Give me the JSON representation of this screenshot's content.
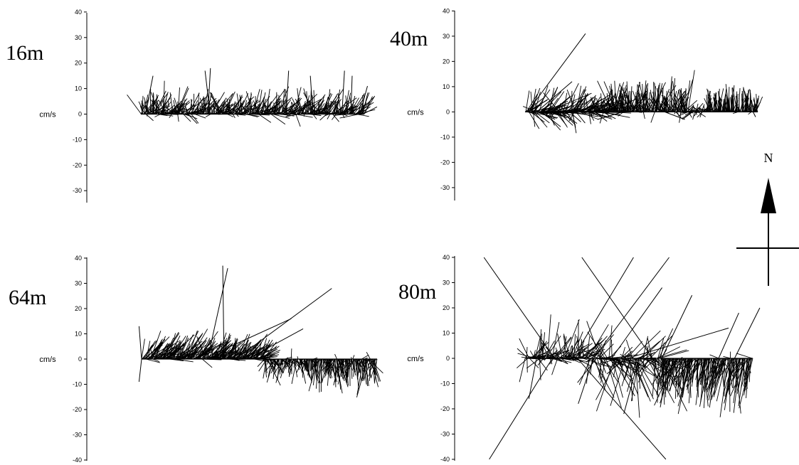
{
  "north": {
    "label": "N"
  },
  "chart_data": [
    {
      "type": "stick-plot",
      "panel": "16m",
      "title": "16m",
      "ylabel": "cm/s",
      "ylim": [
        -35,
        40
      ],
      "yticks": [
        40,
        30,
        20,
        10,
        0,
        -10,
        -20,
        -30
      ],
      "grid": false,
      "spread": 0.6,
      "mean": {
        "u": 0.5,
        "v": 6
      },
      "sticks": [
        {
          "t": 0.02,
          "u": 3,
          "v": 15
        },
        {
          "t": 0.05,
          "u": 6,
          "v": 8
        },
        {
          "t": 0.3,
          "u": 1,
          "v": 18
        },
        {
          "t": 0.31,
          "u": -2,
          "v": 17
        },
        {
          "t": 0.65,
          "u": 1,
          "v": 17
        },
        {
          "t": 0.77,
          "u": -1,
          "v": 15
        },
        {
          "t": 0.9,
          "u": 1,
          "v": 17
        },
        {
          "t": 0.94,
          "u": 0.5,
          "v": 15
        },
        {
          "t": 0.98,
          "u": 3,
          "v": 11
        }
      ],
      "segments": [
        {
          "from": 0.0,
          "to": 1.0,
          "u": 2,
          "v": 4,
          "su": 3,
          "sv": 3
        },
        {
          "from": 0.1,
          "to": 0.62,
          "u": 0.5,
          "v": 9,
          "su": 2.5,
          "sv": 3
        },
        {
          "from": 0.62,
          "to": 1.0,
          "u": 0,
          "v": 8,
          "su": 1.5,
          "sv": 4
        }
      ]
    },
    {
      "type": "stick-plot",
      "panel": "40m",
      "title": "40m",
      "ylabel": "cm/s",
      "ylim": [
        -35,
        40
      ],
      "yticks": [
        40,
        30,
        20,
        10,
        0,
        -10,
        -20,
        -30
      ],
      "grid": false,
      "spread": 0.5,
      "mean": {
        "u": 0.5,
        "v": 5
      },
      "sticks": [
        {
          "t": 0.01,
          "u": 23,
          "v": 31
        },
        {
          "t": 0.05,
          "u": 14,
          "v": 12
        },
        {
          "t": 0.42,
          "u": -10,
          "v": -3
        },
        {
          "t": 0.6,
          "u": 8,
          "v": -3
        },
        {
          "t": 0.72,
          "u": -4,
          "v": -3
        },
        {
          "t": 0.98,
          "u": 1,
          "v": -2
        },
        {
          "t": 0.99,
          "u": 2,
          "v": 4
        }
      ],
      "segments": [
        {
          "from": 0.0,
          "to": 0.36,
          "u": 5,
          "v": 2,
          "su": 4,
          "sv": 4
        },
        {
          "from": 0.36,
          "to": 0.7,
          "u": 0,
          "v": 6,
          "su": 2.5,
          "sv": 4
        },
        {
          "from": 0.7,
          "to": 0.78,
          "u": 0,
          "v": 0.5,
          "su": 2.5,
          "sv": 1.5
        },
        {
          "from": 0.78,
          "to": 1.0,
          "u": 0,
          "v": 5,
          "su": 1,
          "sv": 2.5
        }
      ]
    },
    {
      "type": "stick-plot",
      "panel": "64m",
      "title": "64m",
      "ylabel": "cm/s",
      "ylim": [
        -40,
        40
      ],
      "yticks": [
        40,
        30,
        20,
        10,
        0,
        -10,
        -20,
        -30,
        -40
      ],
      "grid": false,
      "spread": 0.6,
      "mean": {
        "u": 0,
        "v": 0
      },
      "sticks": [
        {
          "t": 0.0,
          "u": -1,
          "v": 13
        },
        {
          "t": 0.0,
          "u": -1,
          "v": -9
        },
        {
          "t": 0.35,
          "u": -0.5,
          "v": 37
        },
        {
          "t": 0.28,
          "u": 8,
          "v": 36
        },
        {
          "t": 0.26,
          "u": 35,
          "v": 16
        },
        {
          "t": 0.4,
          "u": 38,
          "v": 28
        },
        {
          "t": 0.45,
          "u": 22,
          "v": 12
        }
      ],
      "segments": [
        {
          "from": 0.0,
          "to": 0.52,
          "u": 5,
          "v": 5,
          "su": 2.5,
          "sv": 3
        },
        {
          "from": 0.52,
          "to": 0.72,
          "u": 0,
          "v": -4,
          "su": 2,
          "sv": 2.5
        },
        {
          "from": 0.72,
          "to": 1.0,
          "u": 0,
          "v": -6,
          "su": 2,
          "sv": 3.5
        }
      ]
    },
    {
      "type": "stick-plot",
      "panel": "80m",
      "title": "80m",
      "ylabel": "cm/s",
      "ylim": [
        -40,
        40
      ],
      "yticks": [
        40,
        30,
        20,
        10,
        0,
        -10,
        -20,
        -30,
        -40
      ],
      "grid": false,
      "spread": 0.7,
      "mean": {
        "u": 0,
        "v": 0
      },
      "sticks": [
        {
          "t": 0.13,
          "u": -28,
          "v": 40
        },
        {
          "t": 0.12,
          "u": -25,
          "v": -40
        },
        {
          "t": 0.23,
          "u": 35,
          "v": -40
        },
        {
          "t": 0.21,
          "u": 24,
          "v": 40
        },
        {
          "t": 0.3,
          "u": 30,
          "v": 40
        },
        {
          "t": 0.56,
          "u": -28,
          "v": 40
        },
        {
          "t": 0.45,
          "u": 40,
          "v": 12
        },
        {
          "t": 0.38,
          "u": 20,
          "v": 28
        },
        {
          "t": 0.3,
          "u": -6,
          "v": -18
        },
        {
          "t": 0.5,
          "u": -6,
          "v": -22
        },
        {
          "t": 0.05,
          "u": -3,
          "v": -16
        },
        {
          "t": 0.6,
          "u": 12,
          "v": 25
        },
        {
          "t": 0.85,
          "u": 8,
          "v": 18
        },
        {
          "t": 0.92,
          "u": 10,
          "v": 20
        }
      ],
      "segments": [
        {
          "from": 0.0,
          "to": 0.28,
          "u": 3,
          "v": 4,
          "su": 4,
          "sv": 5
        },
        {
          "from": 0.28,
          "to": 0.6,
          "u": 3,
          "v": -3,
          "su": 5,
          "sv": 8
        },
        {
          "from": 0.6,
          "to": 1.0,
          "u": -2,
          "v": -11,
          "su": 2.5,
          "sv": 5
        }
      ]
    }
  ]
}
